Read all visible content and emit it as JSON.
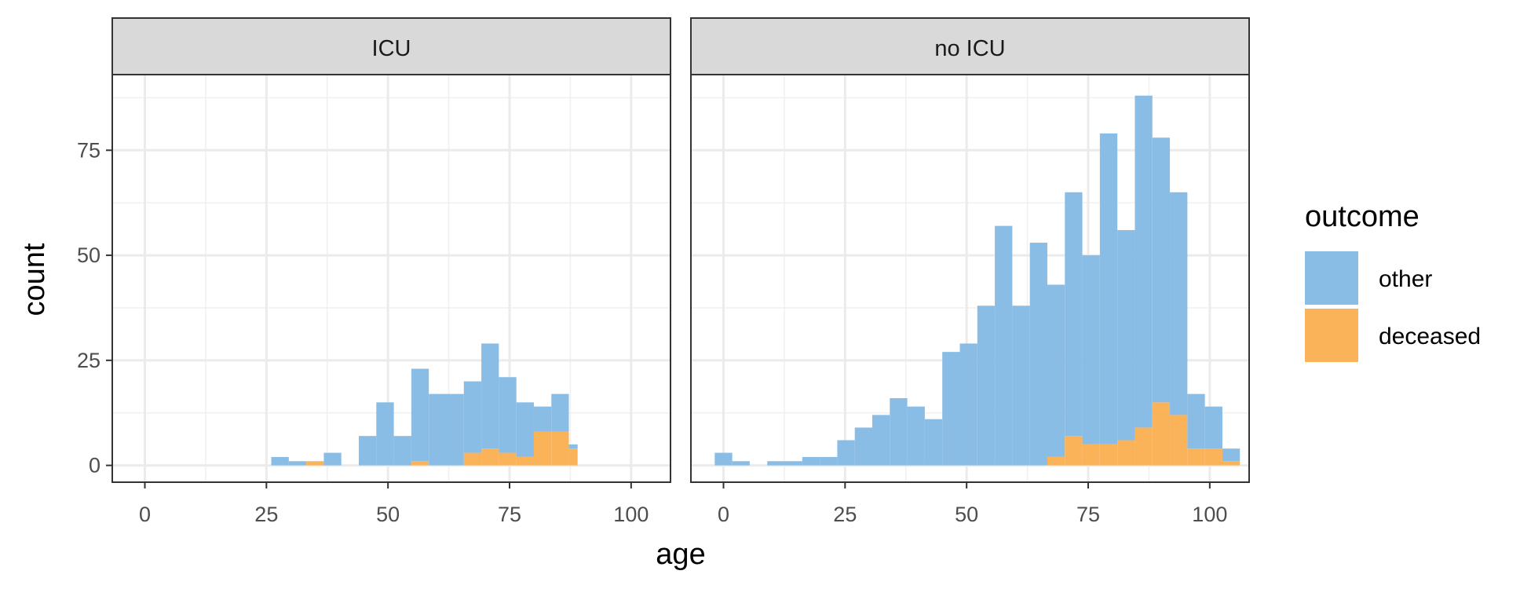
{
  "chart_data": {
    "type": "bar",
    "subtype": "stacked-histogram-faceted",
    "xlabel": "age",
    "ylabel": "count",
    "x_ticks": [
      0,
      25,
      50,
      75,
      100
    ],
    "y_ticks": [
      0,
      25,
      50,
      75
    ],
    "xlim": [
      -6.7,
      108.1
    ],
    "ylim": [
      -4,
      93
    ],
    "bin_width": 3.6,
    "grid": true,
    "legend": {
      "title": "outcome",
      "position": "right",
      "entries": [
        {
          "name": "other",
          "color": "#89BDE6"
        },
        {
          "name": "deceased",
          "color": "#FBB35A"
        }
      ]
    },
    "facets": [
      {
        "label": "ICU",
        "bins": [
          {
            "x0": 26.0,
            "x1": 29.6,
            "other": 2,
            "deceased": 0
          },
          {
            "x0": 29.6,
            "x1": 33.2,
            "other": 1,
            "deceased": 0
          },
          {
            "x0": 33.2,
            "x1": 36.8,
            "other": 0,
            "deceased": 1
          },
          {
            "x0": 36.8,
            "x1": 40.4,
            "other": 3,
            "deceased": 0
          },
          {
            "x0": 44.0,
            "x1": 47.6,
            "other": 7,
            "deceased": 0
          },
          {
            "x0": 47.6,
            "x1": 51.2,
            "other": 15,
            "deceased": 0
          },
          {
            "x0": 51.2,
            "x1": 54.8,
            "other": 7,
            "deceased": 0
          },
          {
            "x0": 54.8,
            "x1": 58.4,
            "other": 22,
            "deceased": 1
          },
          {
            "x0": 58.4,
            "x1": 62.0,
            "other": 17,
            "deceased": 0
          },
          {
            "x0": 62.0,
            "x1": 65.6,
            "other": 17,
            "deceased": 0
          },
          {
            "x0": 65.6,
            "x1": 69.2,
            "other": 17,
            "deceased": 3
          },
          {
            "x0": 69.2,
            "x1": 72.8,
            "other": 25,
            "deceased": 4
          },
          {
            "x0": 72.8,
            "x1": 76.4,
            "other": 18,
            "deceased": 3
          },
          {
            "x0": 76.4,
            "x1": 80.0,
            "other": 13,
            "deceased": 2
          },
          {
            "x0": 80.0,
            "x1": 83.6,
            "other": 6,
            "deceased": 8
          },
          {
            "x0": 83.6,
            "x1": 87.2,
            "other": 9,
            "deceased": 8
          },
          {
            "x0": 87.2,
            "x1": 89.0,
            "other": 1,
            "deceased": 4
          }
        ]
      },
      {
        "label": "no ICU",
        "bins": [
          {
            "x0": -1.8,
            "x1": 1.8,
            "other": 3,
            "deceased": 0
          },
          {
            "x0": 1.8,
            "x1": 5.4,
            "other": 1,
            "deceased": 0
          },
          {
            "x0": 9.0,
            "x1": 12.6,
            "other": 1,
            "deceased": 0
          },
          {
            "x0": 12.6,
            "x1": 16.2,
            "other": 1,
            "deceased": 0
          },
          {
            "x0": 16.2,
            "x1": 19.8,
            "other": 2,
            "deceased": 0
          },
          {
            "x0": 19.8,
            "x1": 23.4,
            "other": 2,
            "deceased": 0
          },
          {
            "x0": 23.4,
            "x1": 27.0,
            "other": 6,
            "deceased": 0
          },
          {
            "x0": 27.0,
            "x1": 30.6,
            "other": 9,
            "deceased": 0
          },
          {
            "x0": 30.6,
            "x1": 34.2,
            "other": 12,
            "deceased": 0
          },
          {
            "x0": 34.2,
            "x1": 37.8,
            "other": 16,
            "deceased": 0
          },
          {
            "x0": 37.8,
            "x1": 41.4,
            "other": 14,
            "deceased": 0
          },
          {
            "x0": 41.4,
            "x1": 45.0,
            "other": 11,
            "deceased": 0
          },
          {
            "x0": 45.0,
            "x1": 48.6,
            "other": 27,
            "deceased": 0
          },
          {
            "x0": 48.6,
            "x1": 52.2,
            "other": 29,
            "deceased": 0
          },
          {
            "x0": 52.2,
            "x1": 55.8,
            "other": 38,
            "deceased": 0
          },
          {
            "x0": 55.8,
            "x1": 59.4,
            "other": 57,
            "deceased": 0
          },
          {
            "x0": 59.4,
            "x1": 63.0,
            "other": 38,
            "deceased": 0
          },
          {
            "x0": 63.0,
            "x1": 66.6,
            "other": 53,
            "deceased": 0
          },
          {
            "x0": 66.6,
            "x1": 70.2,
            "other": 41,
            "deceased": 2
          },
          {
            "x0": 70.2,
            "x1": 73.8,
            "other": 58,
            "deceased": 7
          },
          {
            "x0": 73.8,
            "x1": 77.4,
            "other": 45,
            "deceased": 5
          },
          {
            "x0": 77.4,
            "x1": 81.0,
            "other": 74,
            "deceased": 5
          },
          {
            "x0": 81.0,
            "x1": 84.6,
            "other": 50,
            "deceased": 6
          },
          {
            "x0": 84.6,
            "x1": 88.2,
            "other": 79,
            "deceased": 9
          },
          {
            "x0": 88.2,
            "x1": 91.8,
            "other": 63,
            "deceased": 15
          },
          {
            "x0": 91.8,
            "x1": 95.4,
            "other": 53,
            "deceased": 12
          },
          {
            "x0": 95.4,
            "x1": 99.0,
            "other": 13,
            "deceased": 4
          },
          {
            "x0": 99.0,
            "x1": 102.6,
            "other": 10,
            "deceased": 4
          },
          {
            "x0": 102.6,
            "x1": 106.2,
            "other": 3,
            "deceased": 1
          }
        ]
      }
    ]
  }
}
